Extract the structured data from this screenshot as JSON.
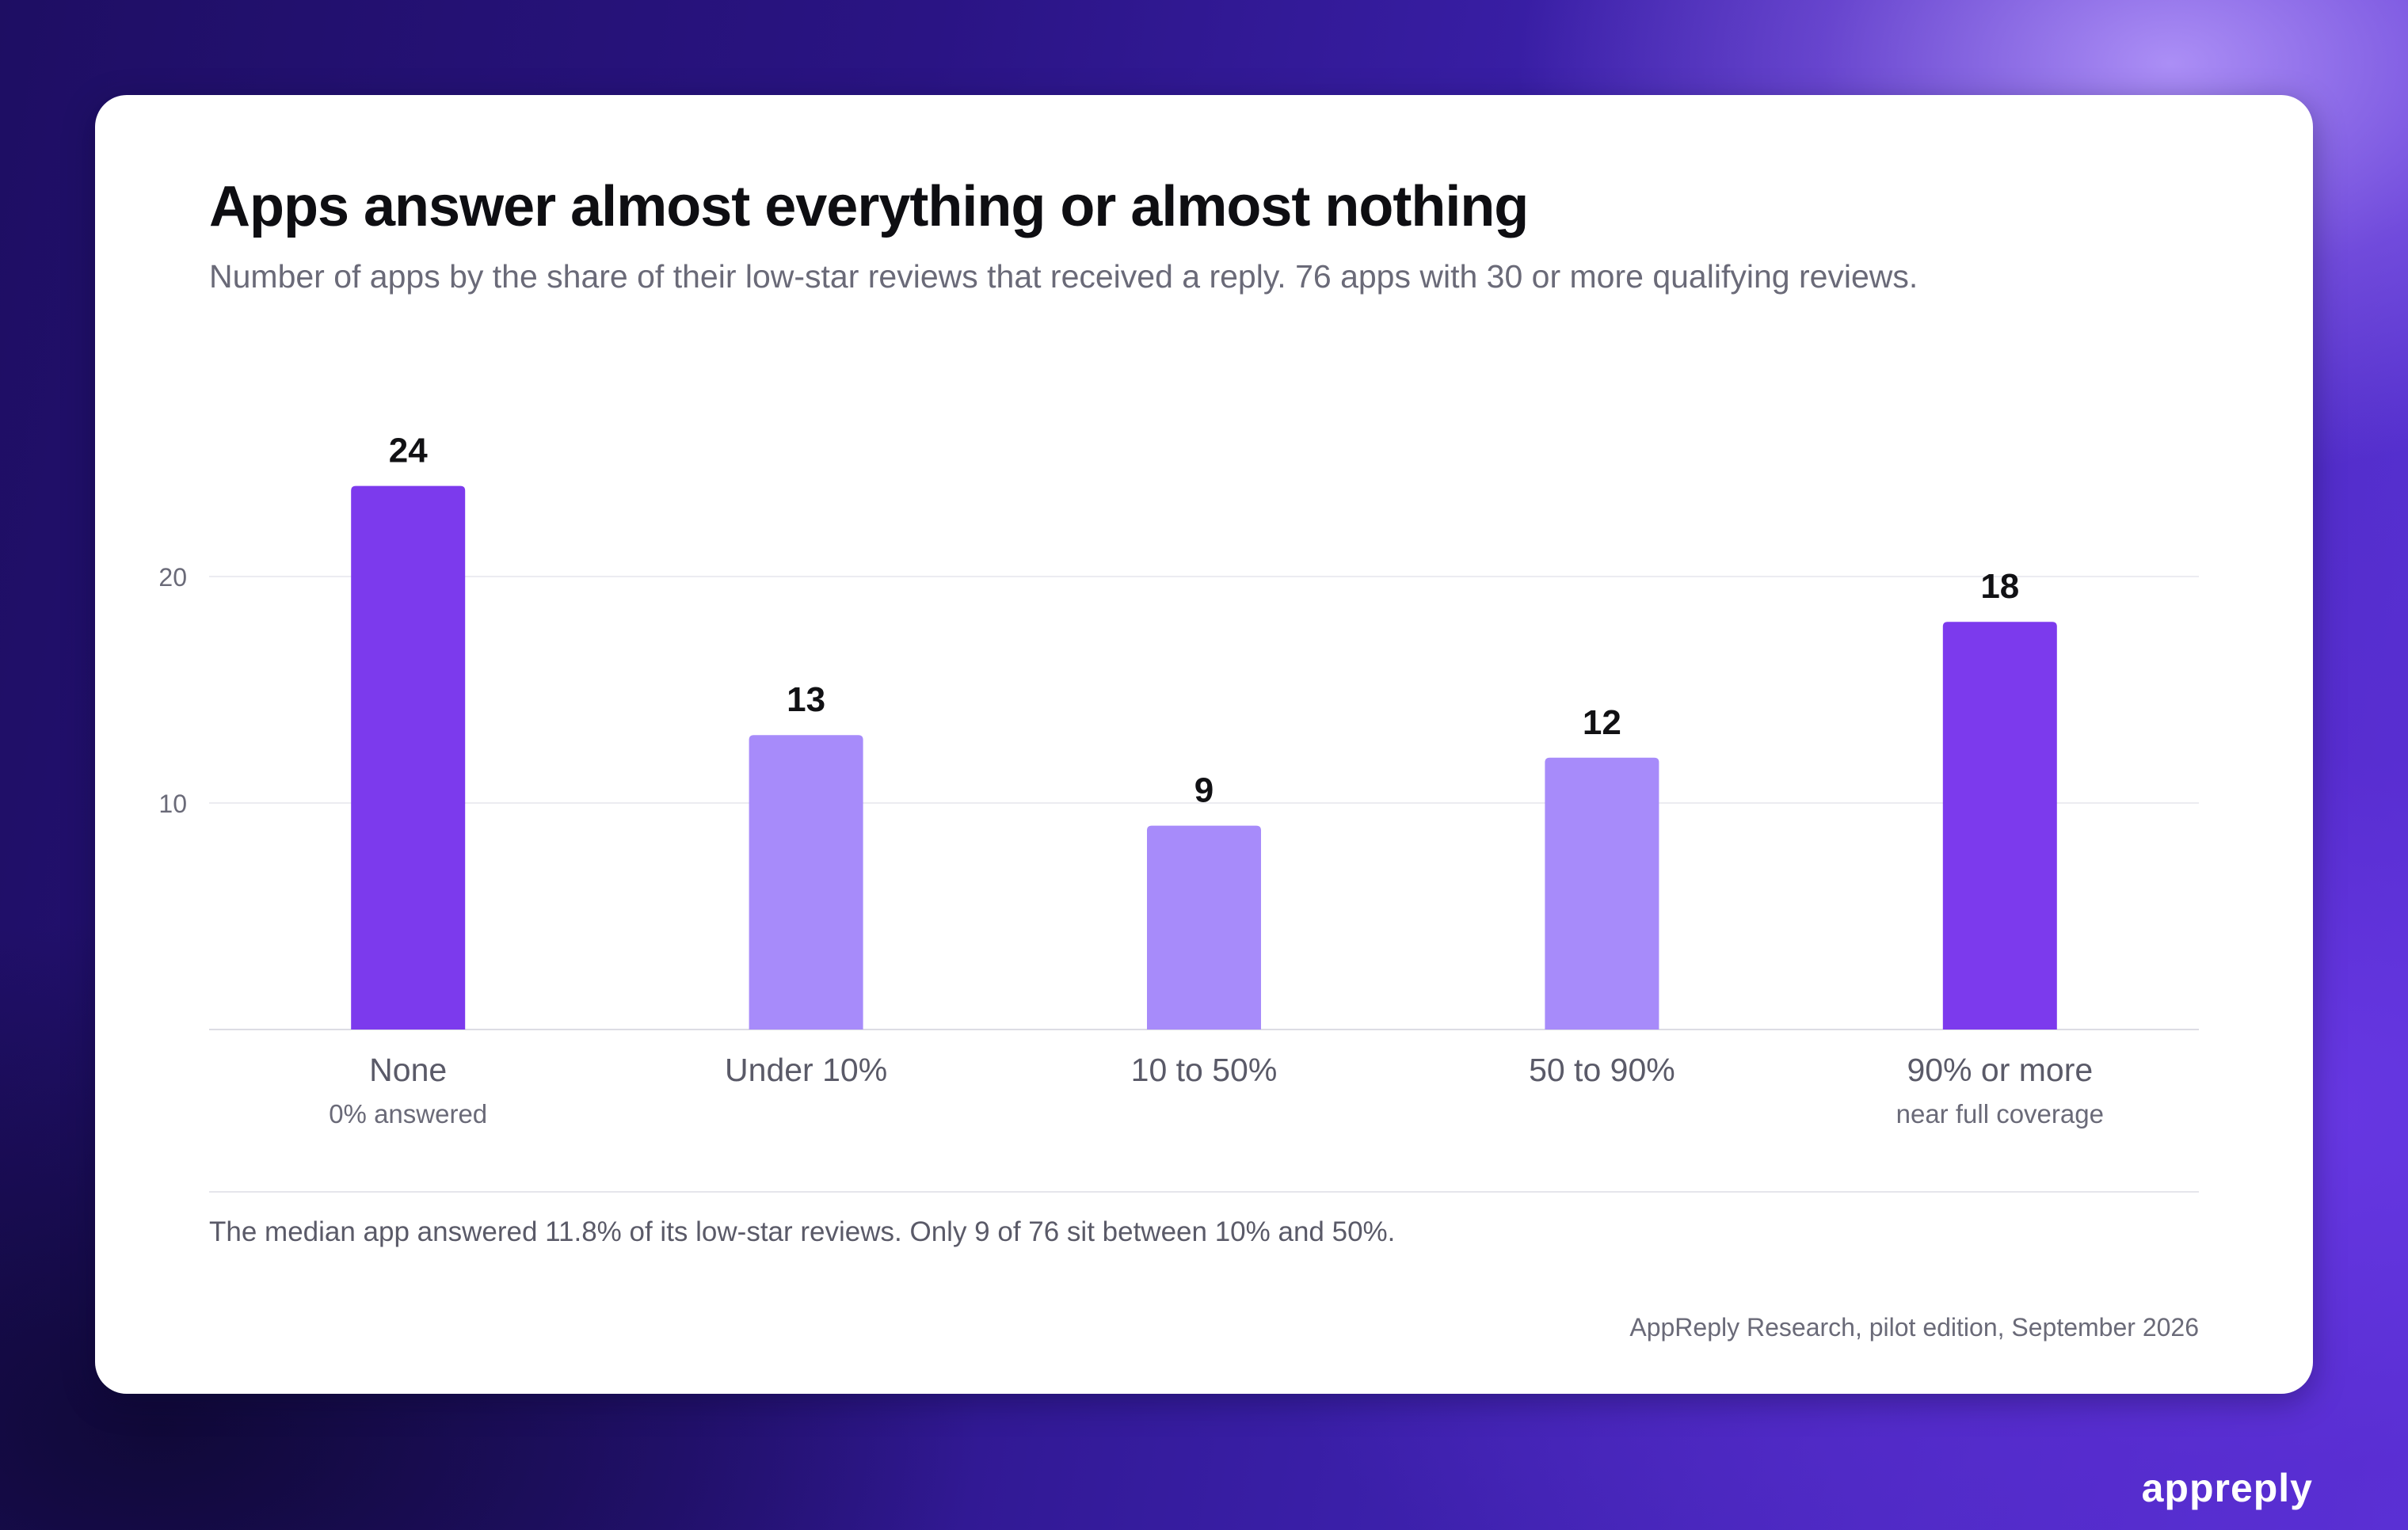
{
  "card": {
    "title": "Apps answer almost everything or almost nothing",
    "subtitle": "Number of apps by the share of their low-star reviews that received a reply. 76 apps with 30 or more qualifying reviews.",
    "note": "The median app answered 11.8% of its low-star reviews. Only 9 of 76 sit between 10% and 50%.",
    "source": "AppReply Research, pilot edition, September 2026"
  },
  "brand": "appreply",
  "colors": {
    "highlight_bar": "#7c3aed",
    "regular_bar": "#a78bfa",
    "gridline": "#ececf1",
    "axis_text": "#5a5a68"
  },
  "chart_data": {
    "type": "bar",
    "categories": [
      "None",
      "Under 10%",
      "10 to 50%",
      "50 to 90%",
      "90% or more"
    ],
    "category_sublabels": [
      "0% answered",
      "",
      "",
      "",
      "near full coverage"
    ],
    "values": [
      24,
      13,
      9,
      12,
      18
    ],
    "highlighted": [
      true,
      false,
      false,
      false,
      true
    ],
    "yticks": [
      10,
      20
    ],
    "ylim": [
      0,
      24
    ],
    "grid": true,
    "title": "Apps answer almost everything or almost nothing",
    "xlabel": "",
    "ylabel": ""
  }
}
